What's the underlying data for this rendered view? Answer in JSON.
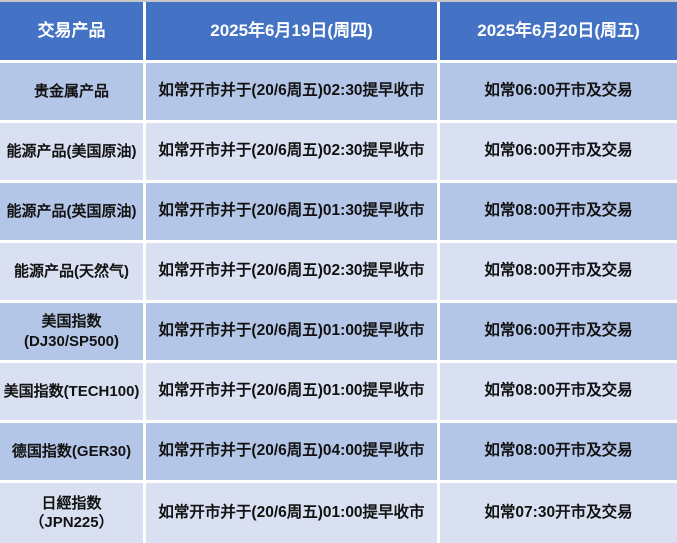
{
  "table": {
    "columns": [
      "交易产品",
      "2025年6月19日(周四)",
      "2025年6月20日(周五)"
    ],
    "rows": [
      {
        "product": "贵金属产品",
        "jun19": "如常开市并于(20/6周五)02:30提早收市",
        "jun20": "如常06:00开市及交易"
      },
      {
        "product": "能源产品(美国原油)",
        "jun19": "如常开市并于(20/6周五)02:30提早收市",
        "jun20": "如常06:00开市及交易"
      },
      {
        "product": "能源产品(英国原油)",
        "jun19": "如常开市并于(20/6周五)01:30提早收市",
        "jun20": "如常08:00开市及交易"
      },
      {
        "product": "能源产品(天然气)",
        "jun19": "如常开市并于(20/6周五)02:30提早收市",
        "jun20": "如常08:00开市及交易"
      },
      {
        "product": "美国指数(DJ30/SP500)",
        "jun19": "如常开市并于(20/6周五)01:00提早收市",
        "jun20": "如常06:00开市及交易"
      },
      {
        "product": "美国指数(TECH100)",
        "jun19": "如常开市并于(20/6周五)01:00提早收市",
        "jun20": "如常08:00开市及交易"
      },
      {
        "product": "德国指数(GER30)",
        "jun19": "如常开市并于(20/6周五)04:00提早收市",
        "jun20": "如常08:00开市及交易"
      },
      {
        "product": "日經指数 （JPN225）",
        "jun19": "如常开市并于(20/6周五)01:00提早收市",
        "jun20": "如常07:30开市及交易"
      }
    ]
  },
  "colors": {
    "header_bg": "#4472C4",
    "header_text": "#FFFFFF",
    "row_medium": "#B4C6E7",
    "row_light": "#D9E0F2",
    "grid_line": "#FFFFFF",
    "body_text": "#121212",
    "top_edge": "#C8C8C8"
  }
}
